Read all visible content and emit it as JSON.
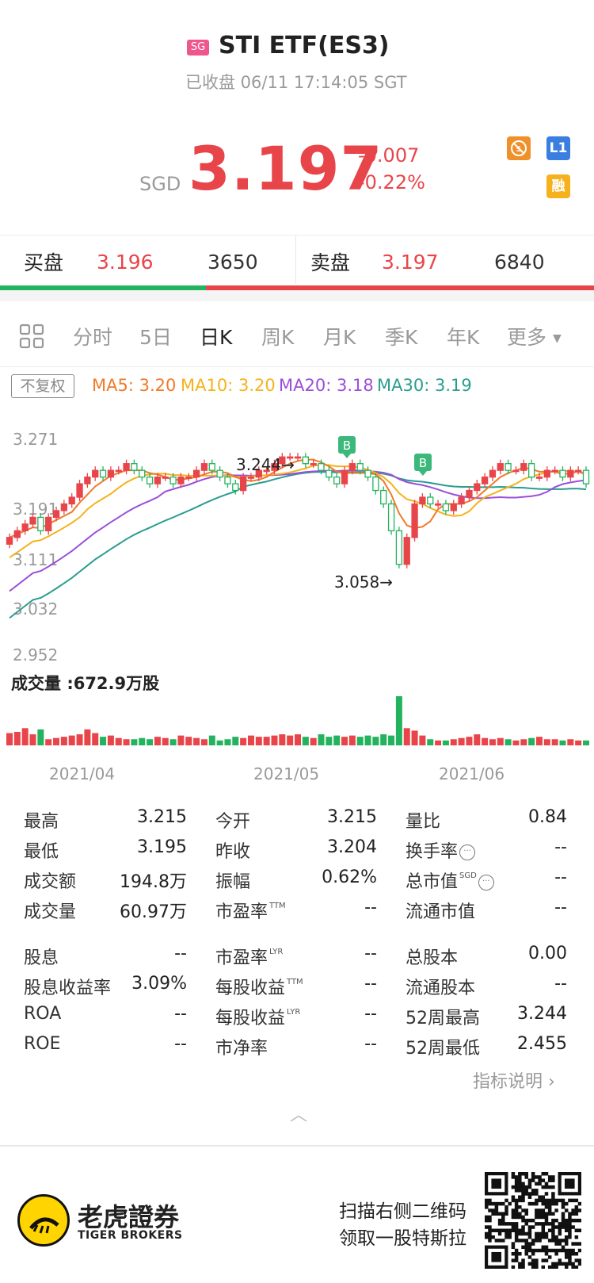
{
  "header": {
    "market_badge": "SG",
    "title": "STI ETF(ES3)",
    "status": "已收盘 06/11 17:14:05 SGT",
    "currency": "SGD",
    "price": "3.197",
    "change": "-0.007",
    "change_pct": "-0.22%",
    "icons": [
      {
        "name": "no-short-icon",
        "color": "#f0902a"
      },
      {
        "name": "level1-icon",
        "label": "L1",
        "color": "#3a7ee0"
      },
      {
        "name": "margin-icon",
        "label": "融",
        "color": "#f5b21c"
      }
    ]
  },
  "orderbook": {
    "bid_label": "买盘",
    "bid_price": "3.196",
    "bid_size": "3650",
    "ask_label": "卖盘",
    "ask_price": "3.197",
    "ask_size": "6840"
  },
  "tabs": [
    "分时",
    "5日",
    "日K",
    "周K",
    "月K",
    "季K",
    "年K",
    "更多"
  ],
  "active_tab": "日K",
  "chart_controls": {
    "adjust": "不复权"
  },
  "ma": {
    "ma5": "MA5: 3.20",
    "ma10": "MA10: 3.20",
    "ma20": "MA20: 3.18",
    "ma30": "MA30: 3.19",
    "colors": {
      "ma5": "#f07a2a",
      "ma10": "#f5b21c",
      "ma20": "#9a4fd9",
      "ma30": "#2a9d8f"
    }
  },
  "chart_data": {
    "type": "candlestick",
    "ylim": [
      2.952,
      3.271
    ],
    "y_ticks": [
      "3.271",
      "3.191",
      "3.111",
      "3.032",
      "2.952"
    ],
    "x_ticks": [
      "2021/04",
      "2021/05",
      "2021/06"
    ],
    "annotations": {
      "high": "3.244→",
      "low": "3.058→",
      "markers": [
        "B",
        "B"
      ]
    },
    "close": [
      3.12,
      3.13,
      3.14,
      3.15,
      3.13,
      3.15,
      3.16,
      3.17,
      3.18,
      3.2,
      3.21,
      3.22,
      3.21,
      3.22,
      3.22,
      3.23,
      3.22,
      3.21,
      3.2,
      3.21,
      3.21,
      3.2,
      3.21,
      3.21,
      3.22,
      3.23,
      3.22,
      3.21,
      3.2,
      3.19,
      3.21,
      3.21,
      3.22,
      3.22,
      3.23,
      3.24,
      3.24,
      3.24,
      3.23,
      3.23,
      3.22,
      3.21,
      3.2,
      3.22,
      3.23,
      3.22,
      3.21,
      3.19,
      3.17,
      3.13,
      3.08,
      3.12,
      3.17,
      3.18,
      3.17,
      3.17,
      3.16,
      3.17,
      3.18,
      3.19,
      3.2,
      3.21,
      3.22,
      3.23,
      3.22,
      3.22,
      3.23,
      3.21,
      3.21,
      3.22,
      3.22,
      3.21,
      3.22,
      3.22,
      3.2
    ],
    "volume": [
      20,
      22,
      28,
      18,
      26,
      10,
      12,
      14,
      16,
      18,
      26,
      20,
      14,
      16,
      12,
      10,
      10,
      12,
      10,
      14,
      12,
      10,
      16,
      14,
      12,
      10,
      16,
      8,
      10,
      14,
      12,
      16,
      14,
      14,
      16,
      18,
      16,
      18,
      14,
      12,
      18,
      14,
      16,
      14,
      16,
      14,
      16,
      14,
      18,
      16,
      80,
      28,
      24,
      16,
      10,
      8,
      8,
      10,
      12,
      14,
      18,
      12,
      10,
      12,
      10,
      8,
      10,
      12,
      14,
      10,
      10,
      8,
      10,
      8,
      8
    ]
  },
  "volume": {
    "label": "成交量",
    "value": ":672.9万股"
  },
  "stats": [
    [
      {
        "l": "最高",
        "v": "3.215"
      },
      {
        "l": "今开",
        "v": "3.215"
      },
      {
        "l": "量比",
        "v": "0.84"
      }
    ],
    [
      {
        "l": "最低",
        "v": "3.195"
      },
      {
        "l": "昨收",
        "v": "3.204"
      },
      {
        "l": "换手率",
        "v": "--"
      }
    ],
    [
      {
        "l": "成交额",
        "v": "194.8万"
      },
      {
        "l": "振幅",
        "v": "0.62%"
      },
      {
        "l": "总市值",
        "v": "--",
        "sup": "SGD"
      }
    ],
    [
      {
        "l": "成交量",
        "v": "60.97万"
      },
      {
        "l": "市盈率",
        "v": "--",
        "sup": "TTM"
      },
      {
        "l": "流通市值",
        "v": "--"
      }
    ],
    [
      {
        "l": "股息",
        "v": "--"
      },
      {
        "l": "市盈率",
        "v": "--",
        "sup": "LYR"
      },
      {
        "l": "总股本",
        "v": "0.00"
      }
    ],
    [
      {
        "l": "股息收益率",
        "v": "3.09%"
      },
      {
        "l": "每股收益",
        "v": "--",
        "sup": "TTM"
      },
      {
        "l": "流通股本",
        "v": "--"
      }
    ],
    [
      {
        "l": "ROA",
        "v": "--"
      },
      {
        "l": "每股收益",
        "v": "--",
        "sup": "LYR"
      },
      {
        "l": "52周最高",
        "v": "3.244"
      }
    ],
    [
      {
        "l": "ROE",
        "v": "--"
      },
      {
        "l": "市净率",
        "v": "--"
      },
      {
        "l": "52周最低",
        "v": "2.455"
      }
    ]
  ],
  "indicator_link": "指标说明",
  "footer": {
    "brand_cn": "老虎證券",
    "brand_en": "TIGER BROKERS",
    "promo_line1": "扫描右侧二维码",
    "promo_line2": "领取一股特斯拉"
  }
}
